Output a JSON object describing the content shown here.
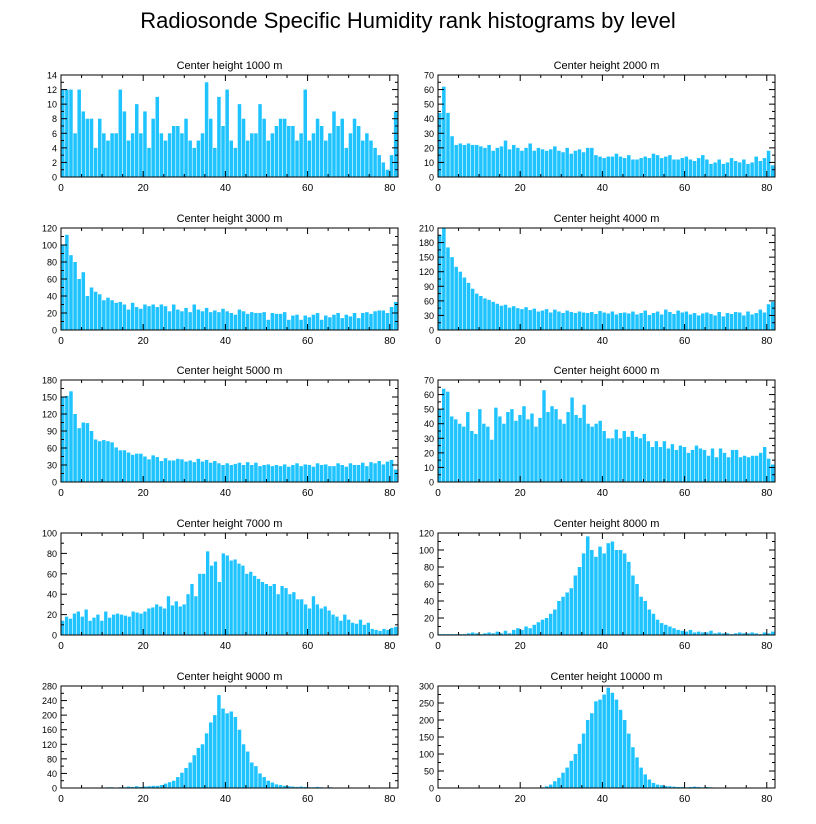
{
  "title": "Radiosonde Specific Humidity rank histograms by level",
  "colors": {
    "bar": "#1ec3ff",
    "bar_edge": "#ffffff",
    "axis": "#000000"
  },
  "chart_data": [
    {
      "type": "bar",
      "title": "Center height 1000 m",
      "xlim": [
        0,
        82
      ],
      "ylim": [
        0,
        14
      ],
      "xticks": [
        0,
        20,
        40,
        60,
        80
      ],
      "yticks": [
        0,
        2,
        4,
        6,
        8,
        10,
        12,
        14
      ],
      "values": [
        12,
        12,
        12,
        6,
        12,
        9,
        8,
        8,
        4,
        8,
        6,
        5,
        6,
        6,
        12,
        9,
        5,
        6,
        10,
        6,
        9,
        4,
        8,
        11,
        6,
        5,
        6,
        7,
        7,
        6,
        8,
        5,
        4,
        5,
        6,
        13,
        8,
        4,
        11,
        7,
        12,
        5,
        4,
        10,
        8,
        5,
        6,
        6,
        10,
        8,
        5,
        6,
        7,
        8,
        8,
        7,
        7,
        5,
        6,
        12,
        5,
        6,
        8,
        7,
        5,
        6,
        9,
        7,
        8,
        4,
        6,
        8,
        7,
        5,
        6,
        5,
        4,
        3,
        2,
        1,
        3,
        9
      ]
    },
    {
      "type": "bar",
      "title": "Center height 2000 m",
      "xlim": [
        0,
        82
      ],
      "ylim": [
        0,
        70
      ],
      "xticks": [
        0,
        20,
        40,
        60,
        80
      ],
      "yticks": [
        0,
        10,
        20,
        30,
        40,
        50,
        60,
        70
      ],
      "values": [
        44,
        62,
        44,
        28,
        22,
        23,
        22,
        23,
        22,
        22,
        21,
        20,
        22,
        18,
        20,
        21,
        25,
        19,
        22,
        20,
        18,
        20,
        23,
        18,
        20,
        19,
        18,
        19,
        21,
        18,
        17,
        20,
        16,
        18,
        19,
        17,
        20,
        20,
        15,
        14,
        13,
        14,
        14,
        16,
        14,
        13,
        15,
        12,
        12,
        13,
        14,
        13,
        16,
        15,
        13,
        14,
        15,
        12,
        12,
        13,
        14,
        12,
        11,
        13,
        15,
        12,
        9,
        10,
        12,
        9,
        10,
        13,
        11,
        10,
        12,
        9,
        10,
        14,
        11,
        13,
        18,
        8
      ]
    },
    {
      "type": "bar",
      "title": "Center height 3000 m",
      "xlim": [
        0,
        82
      ],
      "ylim": [
        0,
        120
      ],
      "xticks": [
        0,
        20,
        40,
        60,
        80
      ],
      "yticks": [
        0,
        20,
        40,
        60,
        80,
        100,
        120
      ],
      "values": [
        100,
        112,
        88,
        80,
        60,
        68,
        40,
        50,
        45,
        42,
        35,
        38,
        35,
        32,
        33,
        30,
        24,
        32,
        27,
        25,
        30,
        28,
        30,
        27,
        30,
        28,
        22,
        30,
        24,
        22,
        26,
        21,
        30,
        24,
        22,
        26,
        21,
        23,
        21,
        25,
        22,
        20,
        18,
        24,
        22,
        19,
        21,
        20,
        20,
        21,
        12,
        20,
        19,
        19,
        21,
        12,
        17,
        18,
        12,
        17,
        15,
        18,
        20,
        12,
        17,
        15,
        18,
        20,
        14,
        18,
        16,
        20,
        14,
        20,
        21,
        19,
        22,
        23,
        23,
        20,
        27,
        33
      ]
    },
    {
      "type": "bar",
      "title": "Center height 4000 m",
      "xlim": [
        0,
        82
      ],
      "ylim": [
        0,
        210
      ],
      "xticks": [
        0,
        20,
        40,
        60,
        80
      ],
      "yticks": [
        0,
        30,
        60,
        90,
        120,
        150,
        180,
        210
      ],
      "values": [
        196,
        210,
        170,
        150,
        130,
        120,
        108,
        97,
        85,
        75,
        70,
        65,
        62,
        58,
        54,
        50,
        52,
        46,
        49,
        45,
        43,
        47,
        41,
        44,
        38,
        40,
        43,
        36,
        42,
        38,
        35,
        40,
        37,
        35,
        38,
        36,
        35,
        37,
        33,
        39,
        36,
        34,
        38,
        32,
        35,
        36,
        34,
        38,
        32,
        35,
        40,
        31,
        35,
        38,
        32,
        42,
        37,
        33,
        40,
        36,
        38,
        32,
        35,
        30,
        34,
        36,
        33,
        30,
        37,
        28,
        35,
        33,
        37,
        36,
        30,
        38,
        32,
        35,
        42,
        36,
        53,
        58
      ]
    },
    {
      "type": "bar",
      "title": "Center height 5000 m",
      "xlim": [
        0,
        82
      ],
      "ylim": [
        0,
        180
      ],
      "xticks": [
        0,
        20,
        40,
        60,
        80
      ],
      "yticks": [
        0,
        30,
        60,
        90,
        120,
        150,
        180
      ],
      "values": [
        150,
        152,
        160,
        120,
        95,
        105,
        104,
        90,
        75,
        72,
        74,
        72,
        70,
        61,
        56,
        56,
        52,
        48,
        50,
        50,
        45,
        40,
        47,
        44,
        37,
        42,
        38,
        38,
        41,
        40,
        36,
        38,
        35,
        41,
        36,
        39,
        34,
        37,
        33,
        30,
        33,
        30,
        32,
        34,
        30,
        35,
        30,
        34,
        28,
        30,
        31,
        28,
        30,
        28,
        31,
        27,
        30,
        33,
        28,
        31,
        30,
        27,
        33,
        30,
        31,
        28,
        28,
        33,
        30,
        27,
        33,
        30,
        30,
        34,
        28,
        35,
        33,
        37,
        31,
        36,
        39,
        22
      ]
    },
    {
      "type": "bar",
      "title": "Center height 6000 m",
      "xlim": [
        0,
        82
      ],
      "ylim": [
        0,
        70
      ],
      "xticks": [
        0,
        20,
        40,
        60,
        80
      ],
      "yticks": [
        0,
        10,
        20,
        30,
        40,
        50,
        60,
        70
      ],
      "values": [
        50,
        64,
        62,
        45,
        43,
        40,
        38,
        48,
        35,
        33,
        50,
        40,
        38,
        29,
        51,
        45,
        40,
        48,
        50,
        42,
        46,
        52,
        43,
        47,
        38,
        44,
        63,
        48,
        52,
        50,
        43,
        40,
        48,
        58,
        46,
        44,
        53,
        40,
        38,
        40,
        42,
        35,
        30,
        30,
        36,
        30,
        35,
        31,
        35,
        31,
        30,
        33,
        28,
        24,
        28,
        24,
        28,
        23,
        26,
        22,
        25,
        24,
        20,
        22,
        25,
        23,
        22,
        18,
        23,
        17,
        23,
        20,
        17,
        22,
        22,
        17,
        18,
        17,
        18,
        18,
        20,
        24,
        16,
        12
      ]
    },
    {
      "type": "bar",
      "title": "Center height 7000 m",
      "xlim": [
        0,
        82
      ],
      "ylim": [
        0,
        100
      ],
      "xticks": [
        0,
        20,
        40,
        60,
        80
      ],
      "yticks": [
        0,
        20,
        40,
        60,
        80,
        100
      ],
      "values": [
        14,
        18,
        16,
        21,
        23,
        18,
        25,
        14,
        17,
        20,
        14,
        23,
        17,
        20,
        21,
        20,
        19,
        18,
        23,
        22,
        21,
        23,
        26,
        27,
        30,
        28,
        26,
        38,
        29,
        33,
        28,
        30,
        40,
        50,
        38,
        60,
        60,
        82,
        68,
        72,
        52,
        80,
        78,
        73,
        74,
        70,
        68,
        60,
        62,
        58,
        55,
        52,
        50,
        48,
        50,
        40,
        48,
        46,
        40,
        42,
        35,
        35,
        30,
        26,
        38,
        30,
        26,
        28,
        24,
        20,
        18,
        14,
        20,
        15,
        12,
        11,
        15,
        10,
        12,
        6,
        5,
        4,
        6,
        5,
        7,
        8
      ]
    },
    {
      "type": "bar",
      "title": "Center height 8000 m",
      "xlim": [
        0,
        82
      ],
      "ylim": [
        0,
        120
      ],
      "xticks": [
        0,
        20,
        40,
        60,
        80
      ],
      "yticks": [
        0,
        20,
        40,
        60,
        80,
        100,
        120
      ],
      "values": [
        1,
        1,
        1,
        1,
        1,
        1,
        1,
        2,
        3,
        2,
        1,
        2,
        3,
        2,
        4,
        2,
        5,
        2,
        6,
        8,
        6,
        10,
        8,
        12,
        15,
        18,
        20,
        25,
        30,
        40,
        45,
        50,
        55,
        70,
        80,
        96,
        116,
        100,
        92,
        104,
        96,
        108,
        110,
        100,
        100,
        96,
        86,
        70,
        60,
        45,
        40,
        30,
        25,
        18,
        14,
        12,
        10,
        8,
        6,
        5,
        4,
        6,
        3,
        4,
        3,
        3,
        5,
        2,
        3,
        2,
        2,
        1,
        2,
        3,
        2,
        2,
        3,
        2,
        1,
        3,
        2,
        4
      ]
    },
    {
      "type": "bar",
      "title": "Center height 9000 m",
      "xlim": [
        0,
        82
      ],
      "ylim": [
        0,
        280
      ],
      "xticks": [
        0,
        20,
        40,
        60,
        80
      ],
      "yticks": [
        0,
        40,
        80,
        120,
        160,
        200,
        240,
        280
      ],
      "values": [
        0,
        0,
        0,
        0,
        0,
        0,
        0,
        0,
        0,
        1,
        1,
        2,
        2,
        1,
        2,
        2,
        4,
        3,
        5,
        3,
        4,
        5,
        6,
        6,
        8,
        12,
        16,
        20,
        30,
        42,
        55,
        70,
        90,
        110,
        120,
        150,
        180,
        200,
        255,
        218,
        205,
        210,
        195,
        160,
        120,
        100,
        70,
        60,
        40,
        30,
        20,
        15,
        10,
        8,
        6,
        5,
        4,
        3,
        4,
        3,
        2,
        2,
        3,
        2,
        1,
        2,
        1,
        1,
        1,
        0,
        0,
        0,
        0,
        0,
        0,
        0,
        0,
        0,
        0,
        0,
        0,
        0
      ]
    },
    {
      "type": "bar",
      "title": "Center height 10000 m",
      "xlim": [
        0,
        82
      ],
      "ylim": [
        0,
        300
      ],
      "xticks": [
        0,
        20,
        40,
        60,
        80
      ],
      "yticks": [
        0,
        50,
        100,
        150,
        200,
        250,
        300
      ],
      "values": [
        0,
        0,
        0,
        0,
        0,
        0,
        0,
        0,
        0,
        0,
        0,
        0,
        0,
        0,
        0,
        0,
        0,
        0,
        0,
        0,
        0,
        0,
        0,
        0,
        1,
        2,
        5,
        10,
        20,
        30,
        45,
        60,
        80,
        100,
        130,
        160,
        200,
        220,
        255,
        260,
        275,
        295,
        280,
        260,
        230,
        200,
        160,
        120,
        90,
        60,
        40,
        25,
        15,
        10,
        8,
        6,
        5,
        4,
        3,
        3,
        2,
        3,
        4,
        3,
        2,
        3,
        2,
        1,
        1,
        0,
        0,
        0,
        0,
        0,
        0,
        0,
        0,
        0,
        0,
        0,
        0,
        0
      ]
    }
  ]
}
